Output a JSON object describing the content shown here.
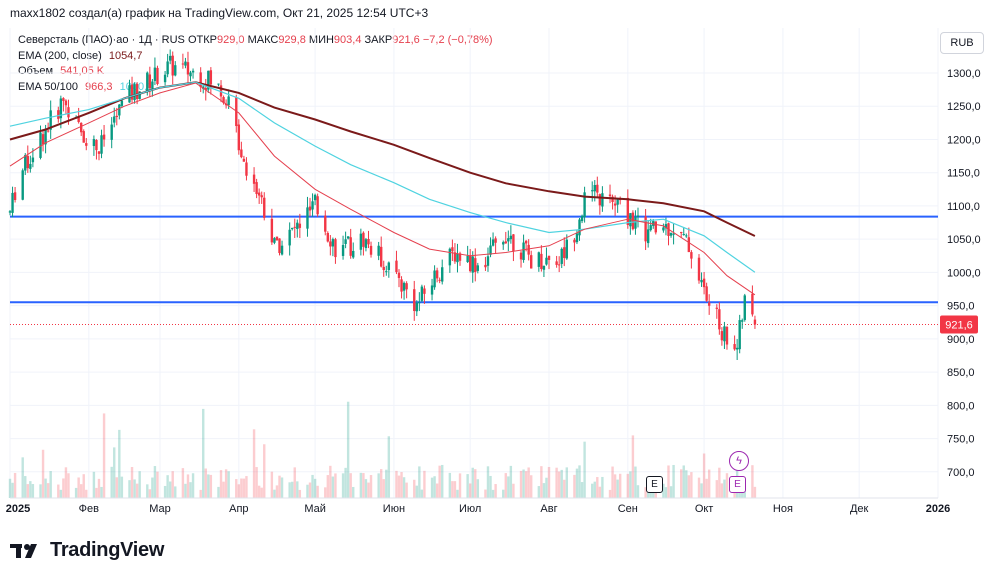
{
  "header": {
    "text": "maxx1802 создал(а) график на TradingView.com, Окт 21, 2025 12:54 UTC+3"
  },
  "legend": {
    "symbol": "Северсталь (ПАО)·ао · 1Д · RUS",
    "open_label": "ОТКР",
    "open": "929,0",
    "high_label": "МАКС",
    "high": "929,8",
    "low_label": "МИН",
    "low": "903,4",
    "close_label": "ЗАКР",
    "close": "921,6",
    "change": "−7,2 (−0,78%)",
    "ema200_label": "EMA (200, close)",
    "ema200": "1054,7",
    "volume_label": "Объем",
    "volume": "541,05 K",
    "ema_pair_label": "EMA 50/100",
    "ema50": "966,3",
    "ema100": "1000,1"
  },
  "currency_button": "RUB",
  "price_tag": "921,6",
  "events": {
    "earnings": "E",
    "dividend": "E"
  },
  "brand": {
    "name": "TradingView"
  },
  "colors": {
    "up": "#089981",
    "down": "#f23645",
    "hline": "#2962ff",
    "ema200": "#7b1a1a",
    "ema50": "#e5404e",
    "ema100": "#4fd3e0",
    "price_tag": "#f23645"
  },
  "chart_data": {
    "type": "candlestick",
    "title": "",
    "y_axis_ticks": [
      "1300,0",
      "1250,0",
      "1200,0",
      "1150,0",
      "1100,0",
      "1050,0",
      "1000,0",
      "950,0",
      "900,0",
      "850,0",
      "800,0",
      "750,0",
      "700,0"
    ],
    "ylim": [
      660,
      1330
    ],
    "x_axis_ticks": [
      "2025",
      "Фев",
      "Мар",
      "Апр",
      "Май",
      "Июн",
      "Июл",
      "Авг",
      "Сен",
      "Окт",
      "Ноя",
      "Дек",
      "2026"
    ],
    "xlim": [
      "2025-01-01",
      "2026-01-01"
    ],
    "last_date": "2025-10-21",
    "horizontal_lines": [
      1084,
      955
    ],
    "last_close": 921.6,
    "price_waypoints": [
      {
        "x": "2025-01-01",
        "y": 1090
      },
      {
        "x": "2025-01-04",
        "y": 1140
      },
      {
        "x": "2025-01-09",
        "y": 1175
      },
      {
        "x": "2025-01-15",
        "y": 1215
      },
      {
        "x": "2025-01-22",
        "y": 1260
      },
      {
        "x": "2025-01-28",
        "y": 1215
      },
      {
        "x": "2025-02-05",
        "y": 1185
      },
      {
        "x": "2025-02-15",
        "y": 1260
      },
      {
        "x": "2025-02-25",
        "y": 1290
      },
      {
        "x": "2025-03-05",
        "y": 1310
      },
      {
        "x": "2025-03-15",
        "y": 1300
      },
      {
        "x": "2025-03-22",
        "y": 1285
      },
      {
        "x": "2025-03-27",
        "y": 1265
      },
      {
        "x": "2025-04-03",
        "y": 1170
      },
      {
        "x": "2025-04-10",
        "y": 1110
      },
      {
        "x": "2025-04-15",
        "y": 1040
      },
      {
        "x": "2025-04-22",
        "y": 1060
      },
      {
        "x": "2025-05-01",
        "y": 1100
      },
      {
        "x": "2025-05-10",
        "y": 1030
      },
      {
        "x": "2025-05-20",
        "y": 1050
      },
      {
        "x": "2025-06-01",
        "y": 1000
      },
      {
        "x": "2025-06-10",
        "y": 950
      },
      {
        "x": "2025-06-18",
        "y": 1000
      },
      {
        "x": "2025-06-25",
        "y": 1030
      },
      {
        "x": "2025-07-05",
        "y": 1010
      },
      {
        "x": "2025-07-15",
        "y": 1060
      },
      {
        "x": "2025-07-25",
        "y": 1020
      },
      {
        "x": "2025-08-05",
        "y": 1020
      },
      {
        "x": "2025-08-10",
        "y": 1050
      },
      {
        "x": "2025-08-16",
        "y": 1120
      },
      {
        "x": "2025-08-28",
        "y": 1100
      },
      {
        "x": "2025-09-08",
        "y": 1060
      },
      {
        "x": "2025-09-18",
        "y": 1070
      },
      {
        "x": "2025-09-25",
        "y": 1040
      },
      {
        "x": "2025-10-02",
        "y": 960
      },
      {
        "x": "2025-10-09",
        "y": 905
      },
      {
        "x": "2025-10-14",
        "y": 890
      },
      {
        "x": "2025-10-17",
        "y": 955
      },
      {
        "x": "2025-10-21",
        "y": 921.6
      }
    ],
    "series": [
      {
        "name": "EMA (200, close)",
        "values": [
          {
            "x": "2025-01-01",
            "y": 1200
          },
          {
            "x": "2025-01-15",
            "y": 1215
          },
          {
            "x": "2025-02-01",
            "y": 1240
          },
          {
            "x": "2025-02-15",
            "y": 1262
          },
          {
            "x": "2025-03-01",
            "y": 1278
          },
          {
            "x": "2025-03-15",
            "y": 1286
          },
          {
            "x": "2025-04-01",
            "y": 1270
          },
          {
            "x": "2025-04-15",
            "y": 1248
          },
          {
            "x": "2025-05-01",
            "y": 1230
          },
          {
            "x": "2025-05-15",
            "y": 1212
          },
          {
            "x": "2025-06-01",
            "y": 1192
          },
          {
            "x": "2025-06-15",
            "y": 1172
          },
          {
            "x": "2025-07-01",
            "y": 1150
          },
          {
            "x": "2025-07-15",
            "y": 1134
          },
          {
            "x": "2025-08-01",
            "y": 1122
          },
          {
            "x": "2025-08-15",
            "y": 1114
          },
          {
            "x": "2025-09-01",
            "y": 1110
          },
          {
            "x": "2025-09-15",
            "y": 1104
          },
          {
            "x": "2025-10-01",
            "y": 1092
          },
          {
            "x": "2025-10-10",
            "y": 1075
          },
          {
            "x": "2025-10-21",
            "y": 1054.7
          }
        ]
      },
      {
        "name": "EMA 100",
        "values": [
          {
            "x": "2025-01-01",
            "y": 1220
          },
          {
            "x": "2025-01-15",
            "y": 1232
          },
          {
            "x": "2025-02-01",
            "y": 1245
          },
          {
            "x": "2025-02-15",
            "y": 1262
          },
          {
            "x": "2025-03-01",
            "y": 1278
          },
          {
            "x": "2025-03-15",
            "y": 1286
          },
          {
            "x": "2025-04-01",
            "y": 1262
          },
          {
            "x": "2025-04-15",
            "y": 1225
          },
          {
            "x": "2025-05-01",
            "y": 1190
          },
          {
            "x": "2025-05-15",
            "y": 1162
          },
          {
            "x": "2025-06-01",
            "y": 1135
          },
          {
            "x": "2025-06-15",
            "y": 1110
          },
          {
            "x": "2025-07-01",
            "y": 1090
          },
          {
            "x": "2025-07-15",
            "y": 1075
          },
          {
            "x": "2025-08-01",
            "y": 1060
          },
          {
            "x": "2025-08-15",
            "y": 1065
          },
          {
            "x": "2025-09-01",
            "y": 1075
          },
          {
            "x": "2025-09-15",
            "y": 1080
          },
          {
            "x": "2025-10-01",
            "y": 1055
          },
          {
            "x": "2025-10-10",
            "y": 1030
          },
          {
            "x": "2025-10-21",
            "y": 1000.1
          }
        ]
      },
      {
        "name": "EMA 50",
        "values": [
          {
            "x": "2025-01-01",
            "y": 1160
          },
          {
            "x": "2025-01-15",
            "y": 1195
          },
          {
            "x": "2025-02-01",
            "y": 1225
          },
          {
            "x": "2025-02-15",
            "y": 1250
          },
          {
            "x": "2025-03-01",
            "y": 1270
          },
          {
            "x": "2025-03-15",
            "y": 1285
          },
          {
            "x": "2025-04-01",
            "y": 1240
          },
          {
            "x": "2025-04-15",
            "y": 1175
          },
          {
            "x": "2025-05-01",
            "y": 1125
          },
          {
            "x": "2025-05-15",
            "y": 1095
          },
          {
            "x": "2025-06-01",
            "y": 1060
          },
          {
            "x": "2025-06-15",
            "y": 1035
          },
          {
            "x": "2025-07-01",
            "y": 1025
          },
          {
            "x": "2025-07-15",
            "y": 1030
          },
          {
            "x": "2025-08-01",
            "y": 1040
          },
          {
            "x": "2025-08-15",
            "y": 1065
          },
          {
            "x": "2025-09-01",
            "y": 1080
          },
          {
            "x": "2025-09-15",
            "y": 1070
          },
          {
            "x": "2025-10-01",
            "y": 1030
          },
          {
            "x": "2025-10-10",
            "y": 995
          },
          {
            "x": "2025-10-21",
            "y": 966.3
          }
        ]
      }
    ],
    "volume_ylim": [
      0,
      1800
    ]
  }
}
